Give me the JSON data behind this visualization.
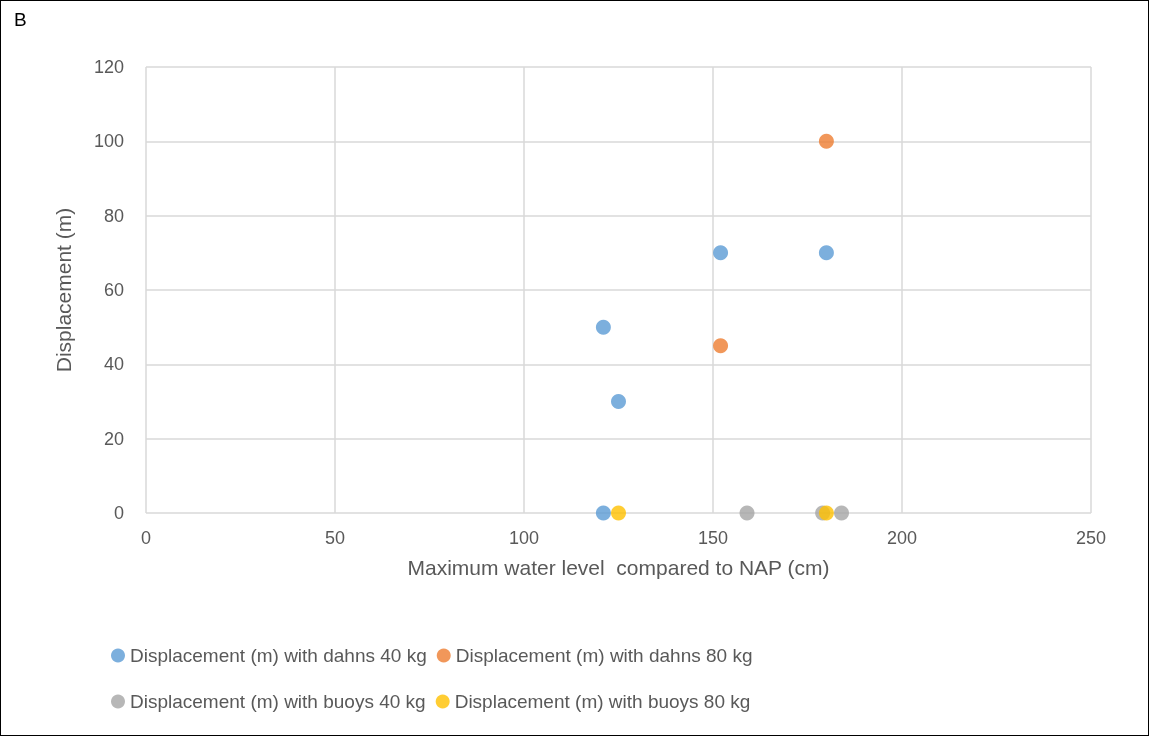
{
  "chart_data": {
    "type": "scatter",
    "title": "B",
    "xlabel": "Maximum water level  compared to NAP (cm)",
    "ylabel": "Displacement (m)",
    "xlim": [
      0,
      250
    ],
    "xticks": [
      0,
      50,
      100,
      150,
      200,
      250
    ],
    "ylim": [
      0,
      120
    ],
    "yticks": [
      0,
      20,
      40,
      60,
      80,
      100,
      120
    ],
    "grid": true,
    "legend": "bottom",
    "marker": "circle",
    "series": [
      {
        "name": "Displacement (m) with dahns 40 kg",
        "color": "#5b9bd5",
        "x": [
          121,
          125,
          152,
          180,
          121
        ],
        "values": [
          50,
          30,
          70,
          70,
          0
        ]
      },
      {
        "name": "Displacement (m) with dahns 80 kg",
        "color": "#ed7d31",
        "x": [
          152,
          180
        ],
        "values": [
          45,
          100
        ]
      },
      {
        "name": "Displacement (m) with buoys 40 kg",
        "color": "#a5a5a5",
        "x": [
          159,
          179,
          184
        ],
        "values": [
          0,
          0,
          0
        ]
      },
      {
        "name": "Displacement (m) with buoys 80 kg",
        "color": "#ffc000",
        "x": [
          125,
          180
        ],
        "values": [
          0,
          0
        ]
      }
    ]
  }
}
